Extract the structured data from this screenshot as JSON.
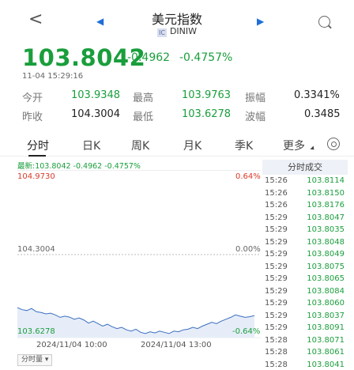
{
  "header": {
    "title": "美元指数",
    "subtitle": "DINIW",
    "flag_glyph": "IC",
    "back_glyph": "<",
    "prev_glyph": "◀",
    "next_glyph": "▶"
  },
  "quote": {
    "price": "103.8042",
    "change": "-0.4962",
    "change_pct": "-0.4757%",
    "time": "11-04 15:29:16"
  },
  "stats": {
    "open_label": "今开",
    "open_value": "103.9348",
    "high_label": "最高",
    "high_value": "103.9763",
    "amp_label": "振幅",
    "amp_value": "0.3341%",
    "prev_label": "昨收",
    "prev_value": "104.3004",
    "low_label": "最低",
    "low_value": "103.6278",
    "wave_label": "波幅",
    "wave_value": "0.3485"
  },
  "tabs": [
    "分时",
    "日K",
    "周K",
    "月K",
    "季K",
    "更多"
  ],
  "latest_line": "最新:103.8042  -0.4962  -0.4757%",
  "chart": {
    "top_price": "104.9730",
    "top_pct": "0.64%",
    "mid_price": "104.3004",
    "mid_pct": "0.00%",
    "bottom_price": "103.6278",
    "bottom_pct": "-0.64%",
    "time_start": "2024/11/04 10:00",
    "time_mid": "2024/11/04 13:00",
    "period_label": "分时量 ▾",
    "line_color": "#3b6fbf",
    "up_color": "#d93a2b",
    "down_color": "#1a9e3c"
  },
  "chart_data": {
    "type": "line",
    "title": "",
    "xlabel": "",
    "ylabel": "",
    "x_ticks": [
      "2024/11/04 10:00",
      "2024/11/04 13:00"
    ],
    "ylim": [
      103.6278,
      104.973
    ],
    "reference": 104.3004,
    "series": [
      {
        "values": [
          103.868,
          103.852,
          103.845,
          103.861,
          103.835,
          103.829,
          103.818,
          103.824,
          103.81,
          103.79,
          103.8,
          103.792,
          103.775,
          103.785,
          103.77,
          103.744,
          103.76,
          103.74,
          103.72,
          103.735,
          103.715,
          103.7,
          103.71,
          103.69,
          103.68,
          103.695,
          103.67,
          103.66,
          103.675,
          103.665,
          103.68,
          103.67,
          103.66,
          103.68,
          103.675,
          103.69,
          103.695,
          103.71,
          103.7,
          103.72,
          103.735,
          103.75,
          103.74,
          103.76,
          103.775,
          103.79,
          103.81,
          103.8,
          103.79,
          103.795,
          103.805
        ]
      }
    ]
  },
  "trades": {
    "header": "分时成交",
    "rows": [
      {
        "time": "15:26",
        "price": "103.8114"
      },
      {
        "time": "15:26",
        "price": "103.8150"
      },
      {
        "time": "15:26",
        "price": "103.8176"
      },
      {
        "time": "15:29",
        "price": "103.8047"
      },
      {
        "time": "15:29",
        "price": "103.8035"
      },
      {
        "time": "15:29",
        "price": "103.8048"
      },
      {
        "time": "15:29",
        "price": "103.8049"
      },
      {
        "time": "15:29",
        "price": "103.8075"
      },
      {
        "time": "15:29",
        "price": "103.8065"
      },
      {
        "time": "15:29",
        "price": "103.8084"
      },
      {
        "time": "15:29",
        "price": "103.8060"
      },
      {
        "time": "15:29",
        "price": "103.8037"
      },
      {
        "time": "15:29",
        "price": "103.8091"
      },
      {
        "time": "15:28",
        "price": "103.8071"
      },
      {
        "time": "15:28",
        "price": "103.8061"
      },
      {
        "time": "15:28",
        "price": "103.8041"
      },
      {
        "time": "15:28",
        "price": "103.8036"
      }
    ]
  }
}
